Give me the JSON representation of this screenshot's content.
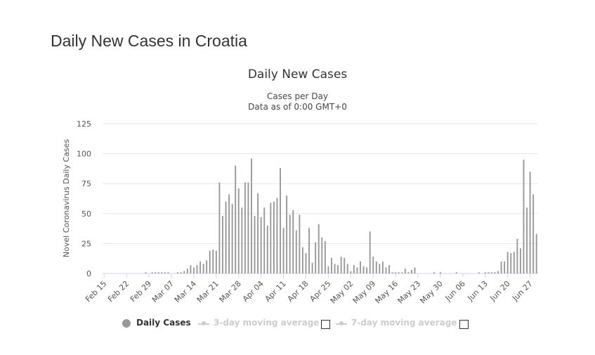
{
  "page": {
    "title": "Daily New Cases in Croatia"
  },
  "chart_data": {
    "type": "bar",
    "title": "Daily New Cases",
    "subtitle_lines": [
      "Cases per Day",
      "Data as of 0:00 GMT+0"
    ],
    "xlabel": "",
    "ylabel": "Novel Coronavirus Daily Cases",
    "ylim": [
      0,
      125
    ],
    "yticks": [
      0,
      25,
      50,
      75,
      100,
      125
    ],
    "grid": true,
    "legend_position": "bottom",
    "xtick_labels": [
      "Feb 15",
      "Feb 22",
      "Feb 29",
      "Mar 07",
      "Mar 14",
      "Mar 21",
      "Mar 28",
      "Apr 04",
      "Apr 11",
      "Apr 18",
      "Apr 25",
      "May 02",
      "May 09",
      "May 16",
      "May 23",
      "May 30",
      "Jun 06",
      "Jun 13",
      "Jun 20",
      "Jun 27"
    ],
    "first_date": "Feb 15",
    "series": [
      {
        "name": "Daily Cases",
        "color": "#999999",
        "values": [
          0,
          0,
          0,
          0,
          0,
          0,
          0,
          0,
          0,
          0,
          0,
          0,
          0,
          1,
          0,
          1,
          1,
          1,
          1,
          1,
          1,
          0,
          0,
          1,
          1,
          2,
          4,
          7,
          5,
          7,
          10,
          8,
          11,
          19,
          20,
          19,
          76,
          48,
          60,
          66,
          58,
          90,
          71,
          55,
          76,
          76,
          96,
          48,
          67,
          47,
          55,
          40,
          59,
          60,
          63,
          88,
          38,
          65,
          49,
          53,
          36,
          49,
          22,
          17,
          38,
          9,
          26,
          41,
          30,
          27,
          6,
          13,
          8,
          7,
          14,
          13,
          8,
          2,
          7,
          5,
          10,
          6,
          5,
          35,
          14,
          10,
          8,
          10,
          5,
          7,
          1,
          1,
          1,
          1,
          4,
          1,
          3,
          5,
          0,
          0,
          0,
          0,
          0,
          1,
          0,
          1,
          0,
          0,
          0,
          0,
          1,
          0,
          0,
          0,
          0,
          0,
          0,
          1,
          0,
          1,
          1,
          1,
          1,
          2,
          10,
          10,
          18,
          17,
          18,
          29,
          21,
          95,
          55,
          85,
          66,
          33
        ]
      },
      {
        "name": "3-day moving average",
        "visible": false
      },
      {
        "name": "7-day moving average",
        "visible": false
      }
    ]
  },
  "legend": {
    "items": [
      {
        "label": "Daily Cases",
        "active": true,
        "color": "#999999"
      },
      {
        "label": "3-day moving average",
        "active": false,
        "color": "#cccccc"
      },
      {
        "label": "7-day moving average",
        "active": false,
        "color": "#cccccc"
      }
    ]
  }
}
